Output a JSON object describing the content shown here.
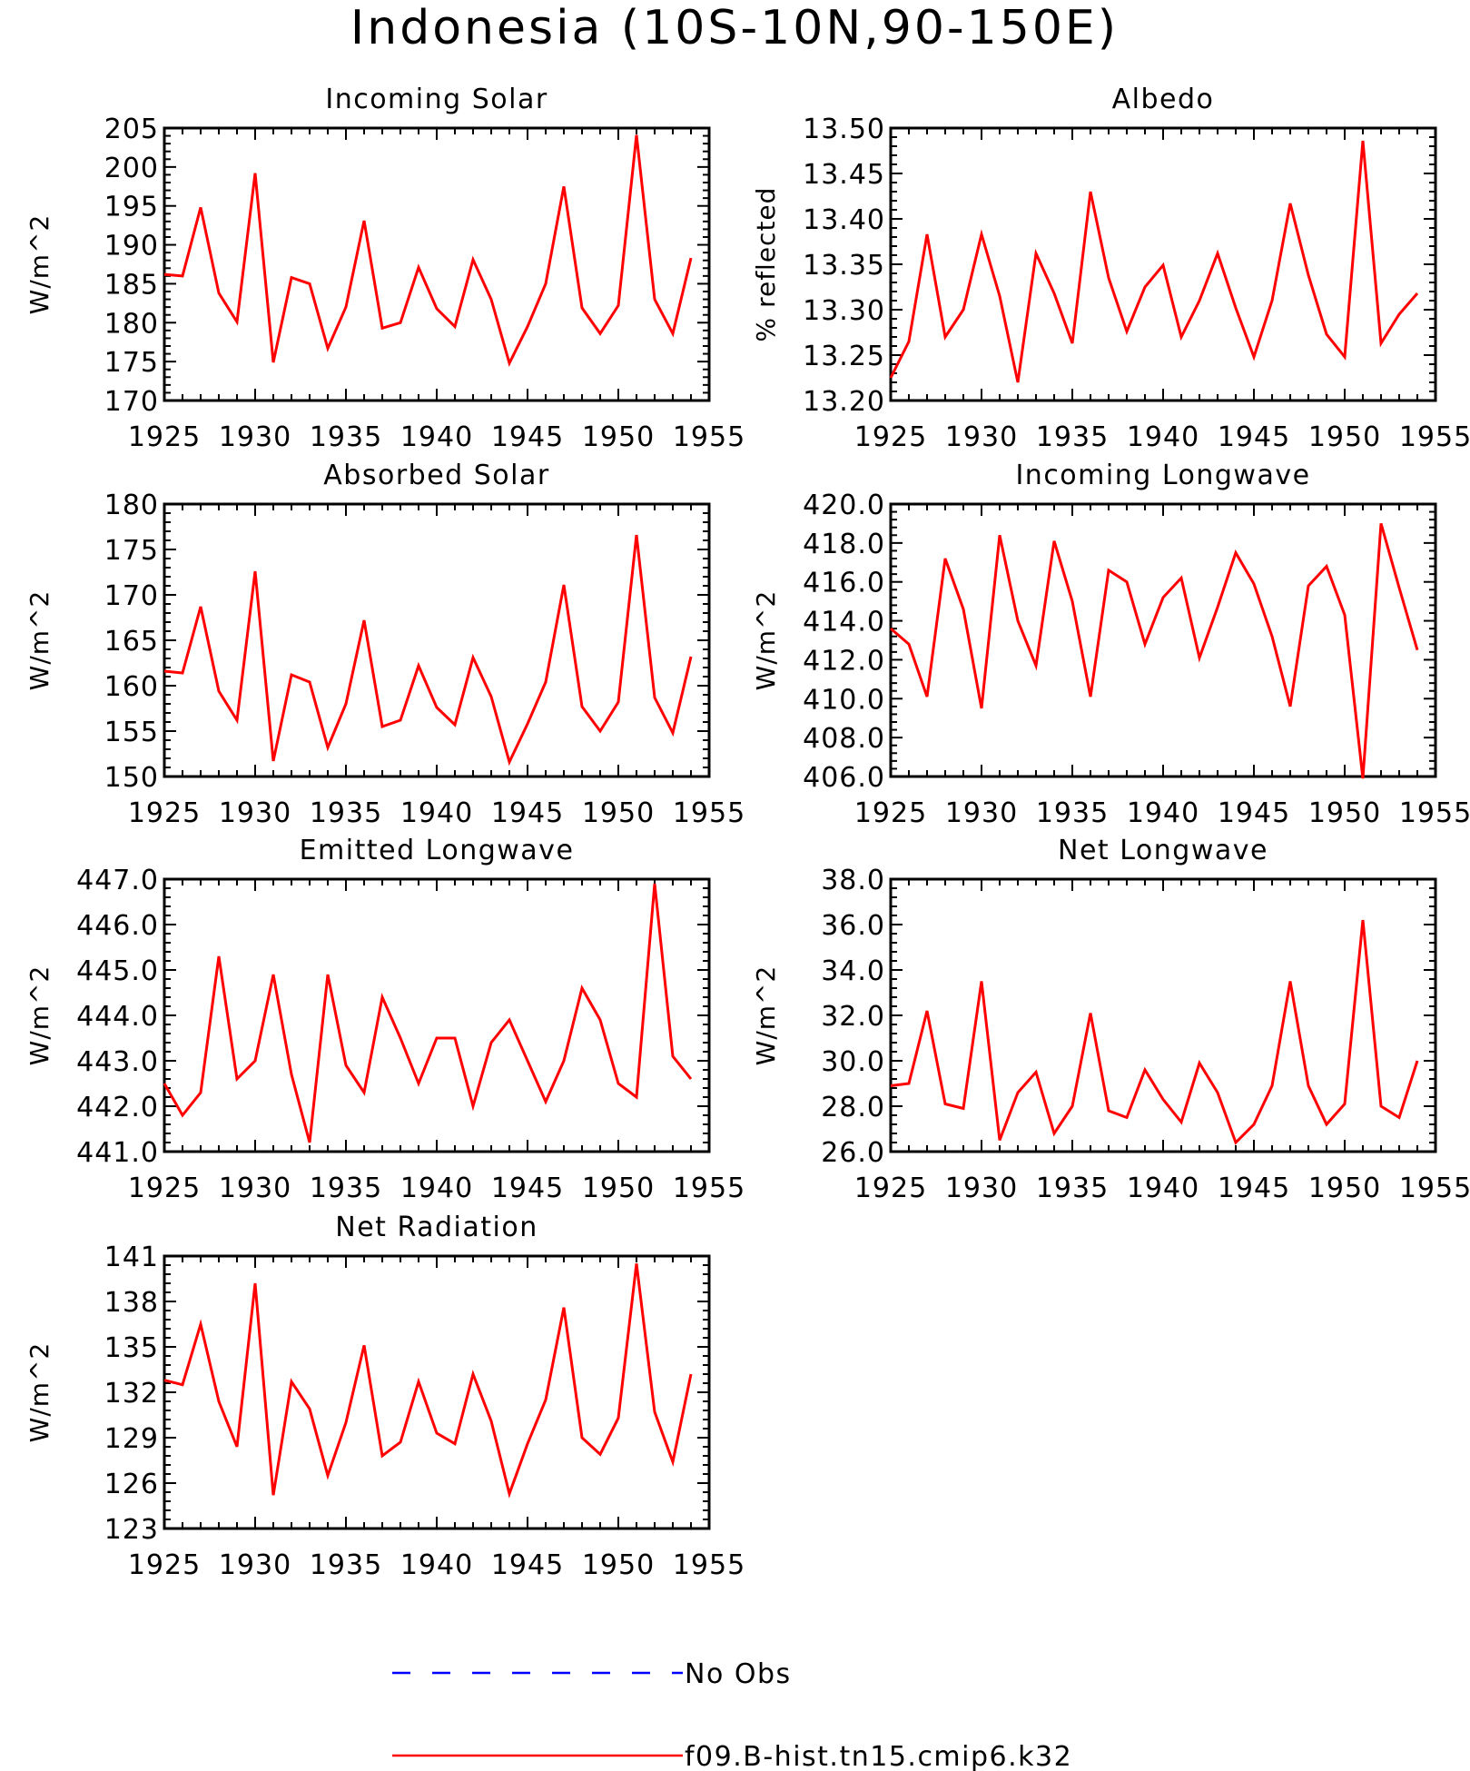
{
  "figure": {
    "title": "Indonesia (10S-10N,90-150E)",
    "legend": [
      {
        "label": "No Obs",
        "color": "#0000ff",
        "style": "dashed"
      },
      {
        "label": "f09.B-hist.tn15.cmip6.k32",
        "color": "#ff0000",
        "style": "solid"
      }
    ]
  },
  "chart_data": [
    {
      "type": "line",
      "title": "Incoming Solar",
      "ylabel": "W/m^2",
      "xlim": [
        1925,
        1955
      ],
      "ylim": [
        170,
        205
      ],
      "xticks": [
        1925,
        1930,
        1935,
        1940,
        1945,
        1950,
        1955
      ],
      "yticks": [
        "170",
        "175",
        "180",
        "185",
        "190",
        "195",
        "200",
        "205"
      ],
      "series": [
        {
          "color": "#ff0000",
          "x": [
            1925,
            1926,
            1927,
            1928,
            1929,
            1930,
            1931,
            1932,
            1933,
            1934,
            1935,
            1936,
            1937,
            1938,
            1939,
            1940,
            1941,
            1942,
            1943,
            1944,
            1945,
            1946,
            1947,
            1948,
            1949,
            1950,
            1951,
            1952,
            1953,
            1954
          ],
          "y": [
            186.2,
            186.0,
            194.8,
            183.8,
            180.1,
            199.2,
            174.9,
            185.8,
            185.0,
            176.7,
            182.0,
            193.1,
            179.3,
            180.0,
            187.1,
            181.8,
            179.5,
            188.1,
            183.0,
            174.8,
            179.5,
            185.0,
            197.5,
            181.9,
            178.6,
            182.2,
            204.1,
            183.0,
            178.6,
            188.3
          ]
        }
      ]
    },
    {
      "type": "line",
      "title": "Albedo",
      "ylabel": "% reflected",
      "xlim": [
        1925,
        1955
      ],
      "ylim": [
        13.2,
        13.5
      ],
      "xticks": [
        1925,
        1930,
        1935,
        1940,
        1945,
        1950,
        1955
      ],
      "yticks": [
        "13.20",
        "13.25",
        "13.30",
        "13.35",
        "13.40",
        "13.45",
        "13.50"
      ],
      "series": [
        {
          "color": "#ff0000",
          "x": [
            1925,
            1926,
            1927,
            1928,
            1929,
            1930,
            1931,
            1932,
            1933,
            1934,
            1935,
            1936,
            1937,
            1938,
            1939,
            1940,
            1941,
            1942,
            1943,
            1944,
            1945,
            1946,
            1947,
            1948,
            1949,
            1950,
            1951,
            1952,
            1953,
            1954
          ],
          "y": [
            13.225,
            13.265,
            13.383,
            13.27,
            13.3,
            13.383,
            13.315,
            13.22,
            13.362,
            13.318,
            13.263,
            13.43,
            13.335,
            13.276,
            13.325,
            13.349,
            13.27,
            13.31,
            13.362,
            13.302,
            13.248,
            13.31,
            13.417,
            13.338,
            13.273,
            13.248,
            13.486,
            13.263,
            13.295,
            13.318
          ]
        }
      ]
    },
    {
      "type": "line",
      "title": "Absorbed Solar",
      "ylabel": "W/m^2",
      "xlim": [
        1925,
        1955
      ],
      "ylim": [
        150,
        180
      ],
      "xticks": [
        1925,
        1930,
        1935,
        1940,
        1945,
        1950,
        1955
      ],
      "yticks": [
        "150",
        "155",
        "160",
        "165",
        "170",
        "175",
        "180"
      ],
      "series": [
        {
          "color": "#ff0000",
          "x": [
            1925,
            1926,
            1927,
            1928,
            1929,
            1930,
            1931,
            1932,
            1933,
            1934,
            1935,
            1936,
            1937,
            1938,
            1939,
            1940,
            1941,
            1942,
            1943,
            1944,
            1945,
            1946,
            1947,
            1948,
            1949,
            1950,
            1951,
            1952,
            1953,
            1954
          ],
          "y": [
            161.6,
            161.4,
            168.7,
            159.4,
            156.2,
            172.6,
            151.7,
            161.2,
            160.4,
            153.2,
            158.0,
            167.2,
            155.5,
            156.2,
            162.2,
            157.6,
            155.7,
            163.1,
            158.8,
            151.6,
            155.8,
            160.4,
            171.1,
            157.7,
            155.0,
            158.2,
            176.6,
            158.7,
            154.8,
            163.2
          ]
        }
      ]
    },
    {
      "type": "line",
      "title": "Incoming Longwave",
      "ylabel": "W/m^2",
      "xlim": [
        1925,
        1955
      ],
      "ylim": [
        406,
        420
      ],
      "xticks": [
        1925,
        1930,
        1935,
        1940,
        1945,
        1950,
        1955
      ],
      "yticks": [
        "406.0",
        "408.0",
        "410.0",
        "412.0",
        "414.0",
        "416.0",
        "418.0",
        "420.0"
      ],
      "series": [
        {
          "color": "#ff0000",
          "x": [
            1925,
            1926,
            1927,
            1928,
            1929,
            1930,
            1931,
            1932,
            1933,
            1934,
            1935,
            1936,
            1937,
            1938,
            1939,
            1940,
            1941,
            1942,
            1943,
            1944,
            1945,
            1946,
            1947,
            1948,
            1949,
            1950,
            1951,
            1952,
            1953,
            1954
          ],
          "y": [
            413.6,
            412.8,
            410.1,
            417.2,
            414.6,
            409.5,
            418.4,
            414.0,
            411.7,
            418.1,
            415.0,
            410.1,
            416.6,
            416.0,
            412.8,
            415.2,
            416.2,
            412.1,
            414.7,
            417.5,
            415.9,
            413.2,
            409.6,
            415.8,
            416.8,
            414.3,
            405.9,
            419.0,
            415.7,
            412.5
          ]
        }
      ]
    },
    {
      "type": "line",
      "title": "Emitted Longwave",
      "ylabel": "W/m^2",
      "xlim": [
        1925,
        1955
      ],
      "ylim": [
        441,
        447
      ],
      "xticks": [
        1925,
        1930,
        1935,
        1940,
        1945,
        1950,
        1955
      ],
      "yticks": [
        "441.0",
        "442.0",
        "443.0",
        "444.0",
        "445.0",
        "446.0",
        "447.0"
      ],
      "series": [
        {
          "color": "#ff0000",
          "x": [
            1925,
            1926,
            1927,
            1928,
            1929,
            1930,
            1931,
            1932,
            1933,
            1934,
            1935,
            1936,
            1937,
            1938,
            1939,
            1940,
            1941,
            1942,
            1943,
            1944,
            1945,
            1946,
            1947,
            1948,
            1949,
            1950,
            1951,
            1952,
            1953,
            1954
          ],
          "y": [
            442.5,
            441.8,
            442.3,
            445.3,
            442.6,
            443.0,
            444.9,
            442.7,
            441.2,
            444.9,
            442.9,
            442.3,
            444.4,
            443.5,
            442.5,
            443.5,
            443.5,
            442.0,
            443.4,
            443.9,
            443.0,
            442.1,
            443.0,
            444.6,
            443.9,
            442.5,
            442.2,
            446.9,
            443.1,
            442.6
          ]
        }
      ]
    },
    {
      "type": "line",
      "title": "Net Longwave",
      "ylabel": "W/m^2",
      "xlim": [
        1925,
        1955
      ],
      "ylim": [
        26,
        38
      ],
      "xticks": [
        1925,
        1930,
        1935,
        1940,
        1945,
        1950,
        1955
      ],
      "yticks": [
        "26.0",
        "28.0",
        "30.0",
        "32.0",
        "34.0",
        "36.0",
        "38.0"
      ],
      "series": [
        {
          "color": "#ff0000",
          "x": [
            1925,
            1926,
            1927,
            1928,
            1929,
            1930,
            1931,
            1932,
            1933,
            1934,
            1935,
            1936,
            1937,
            1938,
            1939,
            1940,
            1941,
            1942,
            1943,
            1944,
            1945,
            1946,
            1947,
            1948,
            1949,
            1950,
            1951,
            1952,
            1953,
            1954
          ],
          "y": [
            28.9,
            29.0,
            32.2,
            28.1,
            27.9,
            33.5,
            26.5,
            28.6,
            29.5,
            26.8,
            28.0,
            32.1,
            27.8,
            27.5,
            29.6,
            28.3,
            27.3,
            29.9,
            28.6,
            26.4,
            27.2,
            28.9,
            33.5,
            28.9,
            27.2,
            28.1,
            36.2,
            28.0,
            27.5,
            30.0
          ]
        }
      ]
    },
    {
      "type": "line",
      "title": "Net Radiation",
      "ylabel": "W/m^2",
      "xlim": [
        1925,
        1955
      ],
      "ylim": [
        123,
        141
      ],
      "xticks": [
        1925,
        1930,
        1935,
        1940,
        1945,
        1950,
        1955
      ],
      "yticks": [
        "123",
        "126",
        "129",
        "132",
        "135",
        "138",
        "141"
      ],
      "series": [
        {
          "color": "#ff0000",
          "x": [
            1925,
            1926,
            1927,
            1928,
            1929,
            1930,
            1931,
            1932,
            1933,
            1934,
            1935,
            1936,
            1937,
            1938,
            1939,
            1940,
            1941,
            1942,
            1943,
            1944,
            1945,
            1946,
            1947,
            1948,
            1949,
            1950,
            1951,
            1952,
            1953,
            1954
          ],
          "y": [
            132.8,
            132.5,
            136.5,
            131.4,
            128.4,
            139.2,
            125.2,
            132.7,
            130.9,
            126.5,
            130.0,
            135.1,
            127.8,
            128.7,
            132.7,
            129.3,
            128.6,
            133.2,
            130.1,
            125.3,
            128.6,
            131.5,
            137.6,
            129.0,
            127.9,
            130.3,
            140.5,
            130.7,
            127.4,
            133.2
          ]
        }
      ]
    }
  ]
}
